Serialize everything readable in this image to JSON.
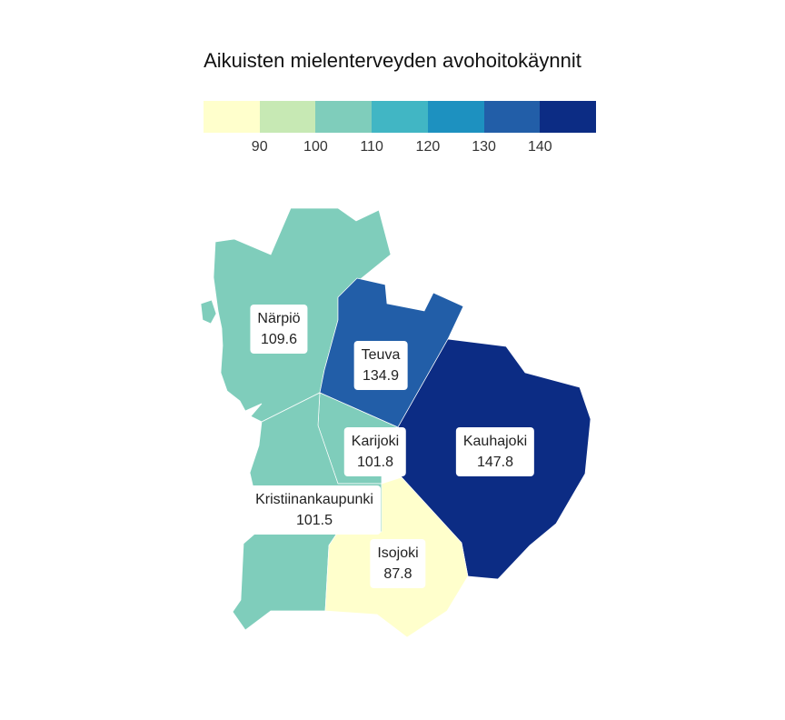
{
  "title": "Aikuisten mielenterveyden avohoitokäynnit",
  "legend": {
    "colors": [
      "#ffffcc",
      "#c7e9b4",
      "#7fcdbb",
      "#41b6c4",
      "#1d91c0",
      "#225ea8",
      "#0c2c84"
    ],
    "ticks": [
      "90",
      "100",
      "110",
      "120",
      "130",
      "140"
    ]
  },
  "regions": [
    {
      "name": "Närpiö",
      "value": "109.6",
      "color": "#7fcdbb"
    },
    {
      "name": "Teuva",
      "value": "134.9",
      "color": "#225ea8"
    },
    {
      "name": "Karijoki",
      "value": "101.8",
      "color": "#7fcdbb"
    },
    {
      "name": "Kauhajoki",
      "value": "147.8",
      "color": "#0c2c84"
    },
    {
      "name": "Kristiinankaupunki",
      "value": "101.5",
      "color": "#7fcdbb"
    },
    {
      "name": "Isojoki",
      "value": "87.8",
      "color": "#ffffcc"
    }
  ]
}
